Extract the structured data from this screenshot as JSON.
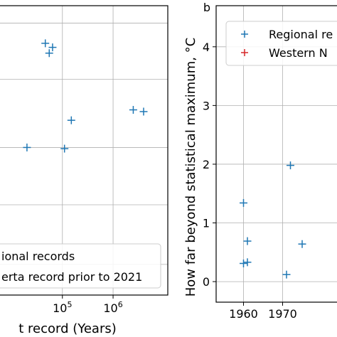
{
  "chart_data": [
    {
      "panel": "left",
      "type": "scatter",
      "xscale": "log",
      "xlabel": "t record (Years)",
      "ylabel": "",
      "xtick_labels": [
        {
          "value": 100000,
          "base": "10",
          "exp": "5"
        },
        {
          "value": 1000000,
          "base": "10",
          "exp": "6"
        }
      ],
      "xlim": [
        5000,
        12000000
      ],
      "ylim": [
        0,
        5
      ],
      "ygrid_values": [
        0.53,
        1.56,
        2.55,
        3.73,
        4.7
      ],
      "grid": true,
      "legend": {
        "placement": "bottom-right",
        "entries": [
          {
            "label": "ional records",
            "color": "#1f77b4"
          },
          {
            "label": "erta record prior to 2021",
            "color": "#d62728"
          }
        ]
      },
      "series": [
        {
          "name": "ional records",
          "color": "#1f77b4",
          "marker": "+",
          "points": [
            [
              20000,
              2.55
            ],
            [
              46000,
              4.35
            ],
            [
              55000,
              4.18
            ],
            [
              64000,
              4.28
            ],
            [
              110000,
              2.53
            ],
            [
              150000,
              3.02
            ],
            [
              2500000,
              3.2
            ],
            [
              4000000,
              3.17
            ]
          ]
        }
      ]
    },
    {
      "panel": "right",
      "panel_label": "b",
      "type": "scatter",
      "xlabel": "",
      "ylabel": "How far beyond statistical maximum, °C",
      "xlim": [
        1953,
        1985
      ],
      "ylim": [
        -0.35,
        4.7
      ],
      "xticks": [
        1960,
        1970
      ],
      "yticks": [
        0,
        1,
        2,
        3,
        4
      ],
      "grid": true,
      "legend": {
        "placement": "top-left",
        "entries": [
          {
            "label": "Regional re",
            "color": "#1f77b4"
          },
          {
            "label": "Western N",
            "color": "#d62728"
          }
        ]
      },
      "series": [
        {
          "name": "Regional re",
          "color": "#1f77b4",
          "marker": "+",
          "points": [
            [
              1960,
              1.34
            ],
            [
              1960,
              0.31
            ],
            [
              1961,
              0.69
            ],
            [
              1961,
              0.33
            ],
            [
              1971,
              0.12
            ],
            [
              1972,
              1.98
            ],
            [
              1975,
              0.64
            ]
          ]
        }
      ]
    }
  ]
}
